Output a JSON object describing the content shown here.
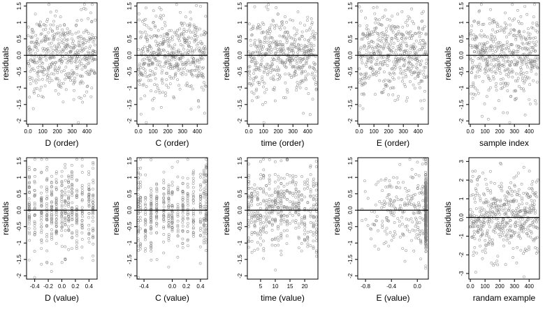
{
  "chart_data": [
    {
      "type": "scatter",
      "xlabel": "D (order)",
      "ylabel": "residuals",
      "xticks": [
        0,
        100,
        200,
        300,
        400
      ],
      "xlim": [
        -10,
        470
      ],
      "yticks": [
        -2.0,
        -1.5,
        -1.0,
        -0.5,
        0.0,
        0.5,
        1.0,
        1.5
      ],
      "ylim": [
        -2.1,
        1.6
      ],
      "hline": 0,
      "n_points": 470,
      "pattern": "index"
    },
    {
      "type": "scatter",
      "xlabel": "C (order)",
      "ylabel": "residuals",
      "xticks": [
        0,
        100,
        200,
        300,
        400
      ],
      "xlim": [
        -10,
        470
      ],
      "yticks": [
        -2.0,
        -1.5,
        -1.0,
        -0.5,
        0.0,
        0.5,
        1.0,
        1.5
      ],
      "ylim": [
        -2.1,
        1.6
      ],
      "hline": 0,
      "n_points": 470,
      "pattern": "index"
    },
    {
      "type": "scatter",
      "xlabel": "time (order)",
      "ylabel": "residuals",
      "xticks": [
        0,
        100,
        200,
        300,
        400
      ],
      "xlim": [
        -10,
        470
      ],
      "yticks": [
        -2.0,
        -1.5,
        -1.0,
        -0.5,
        0.0,
        0.5,
        1.0,
        1.5
      ],
      "ylim": [
        -2.1,
        1.6
      ],
      "hline": 0,
      "n_points": 470,
      "pattern": "index"
    },
    {
      "type": "scatter",
      "xlabel": "E (order)",
      "ylabel": "residuals",
      "xticks": [
        0,
        100,
        200,
        300,
        400
      ],
      "xlim": [
        -10,
        470
      ],
      "yticks": [
        -2.0,
        -1.5,
        -1.0,
        -0.5,
        0.0,
        0.5,
        1.0,
        1.5
      ],
      "ylim": [
        -2.1,
        1.6
      ],
      "hline": 0,
      "n_points": 470,
      "pattern": "index"
    },
    {
      "type": "scatter",
      "xlabel": "sample index",
      "ylabel": "residuals",
      "xticks": [
        0,
        100,
        200,
        300,
        400
      ],
      "xlim": [
        -10,
        470
      ],
      "yticks": [
        -2.0,
        -1.5,
        -1.0,
        -0.5,
        0.0,
        0.5,
        1.0,
        1.5
      ],
      "ylim": [
        -2.1,
        1.6
      ],
      "hline": 0,
      "n_points": 470,
      "pattern": "index"
    },
    {
      "type": "scatter",
      "xlabel": "D (value)",
      "ylabel": "residuals",
      "xticks": [
        -0.4,
        -0.2,
        0.0,
        0.2,
        0.4
      ],
      "xlim": [
        -0.52,
        0.52
      ],
      "yticks": [
        -2.0,
        -1.5,
        -1.0,
        -0.5,
        0.0,
        0.5,
        1.0,
        1.5
      ],
      "ylim": [
        -2.1,
        1.6
      ],
      "hline": 0,
      "n_points": 470,
      "pattern": "discrete",
      "x_levels": [
        -0.48,
        -0.4,
        -0.3,
        -0.22,
        -0.15,
        -0.08,
        0.0,
        0.05,
        0.1,
        0.15,
        0.22,
        0.3,
        0.4,
        0.46
      ]
    },
    {
      "type": "scatter",
      "xlabel": "C (value)",
      "ylabel": "residuals",
      "xticks": [
        -0.4,
        0.0,
        0.2,
        0.4
      ],
      "xlim": [
        -0.5,
        0.5
      ],
      "yticks": [
        -2.0,
        -1.5,
        -1.0,
        -0.5,
        0.0,
        0.5,
        1.0,
        1.5
      ],
      "ylim": [
        -2.1,
        1.6
      ],
      "hline": 0,
      "n_points": 470,
      "pattern": "discrete",
      "x_levels": [
        -0.48,
        -0.45,
        -0.38,
        -0.3,
        -0.22,
        -0.12,
        -0.05,
        0.0,
        0.08,
        0.15,
        0.22,
        0.3,
        0.4,
        0.45,
        0.48
      ]
    },
    {
      "type": "scatter",
      "xlabel": "time (value)",
      "ylabel": "residuals",
      "xticks": [
        5,
        10,
        15,
        20
      ],
      "xlim": [
        0.5,
        24.5
      ],
      "yticks": [
        -2.0,
        -1.5,
        -1.0,
        -0.5,
        0.0,
        0.5,
        1.0,
        1.5
      ],
      "ylim": [
        -2.1,
        1.6
      ],
      "hline": 0,
      "n_points": 470,
      "pattern": "discrete",
      "x_levels": [
        1,
        2,
        3,
        4,
        5,
        6,
        7,
        8,
        9,
        10,
        11,
        12,
        13,
        14,
        15,
        16,
        17,
        18,
        19,
        20,
        21,
        22,
        23,
        24
      ]
    },
    {
      "type": "scatter",
      "xlabel": "E (value)",
      "ylabel": "residuals",
      "xticks": [
        -0.8,
        -0.4,
        0.0
      ],
      "xlim": [
        -0.92,
        0.17
      ],
      "yticks": [
        -2.0,
        -1.5,
        -1.0,
        -0.5,
        0.0,
        0.5,
        1.0,
        1.5
      ],
      "ylim": [
        -2.1,
        1.6
      ],
      "hline": 0,
      "n_points": 470,
      "pattern": "skewed",
      "x_cluster": 0.13
    },
    {
      "type": "scatter",
      "xlabel": "randam example",
      "ylabel": "residuals",
      "xticks": [
        0,
        100,
        200,
        300,
        400
      ],
      "xlim": [
        -10,
        470
      ],
      "yticks": [
        -3,
        -2,
        -1,
        0,
        1,
        2,
        3
      ],
      "ylim": [
        -3.3,
        3.2
      ],
      "hline": 0,
      "n_points": 470,
      "pattern": "index"
    }
  ]
}
